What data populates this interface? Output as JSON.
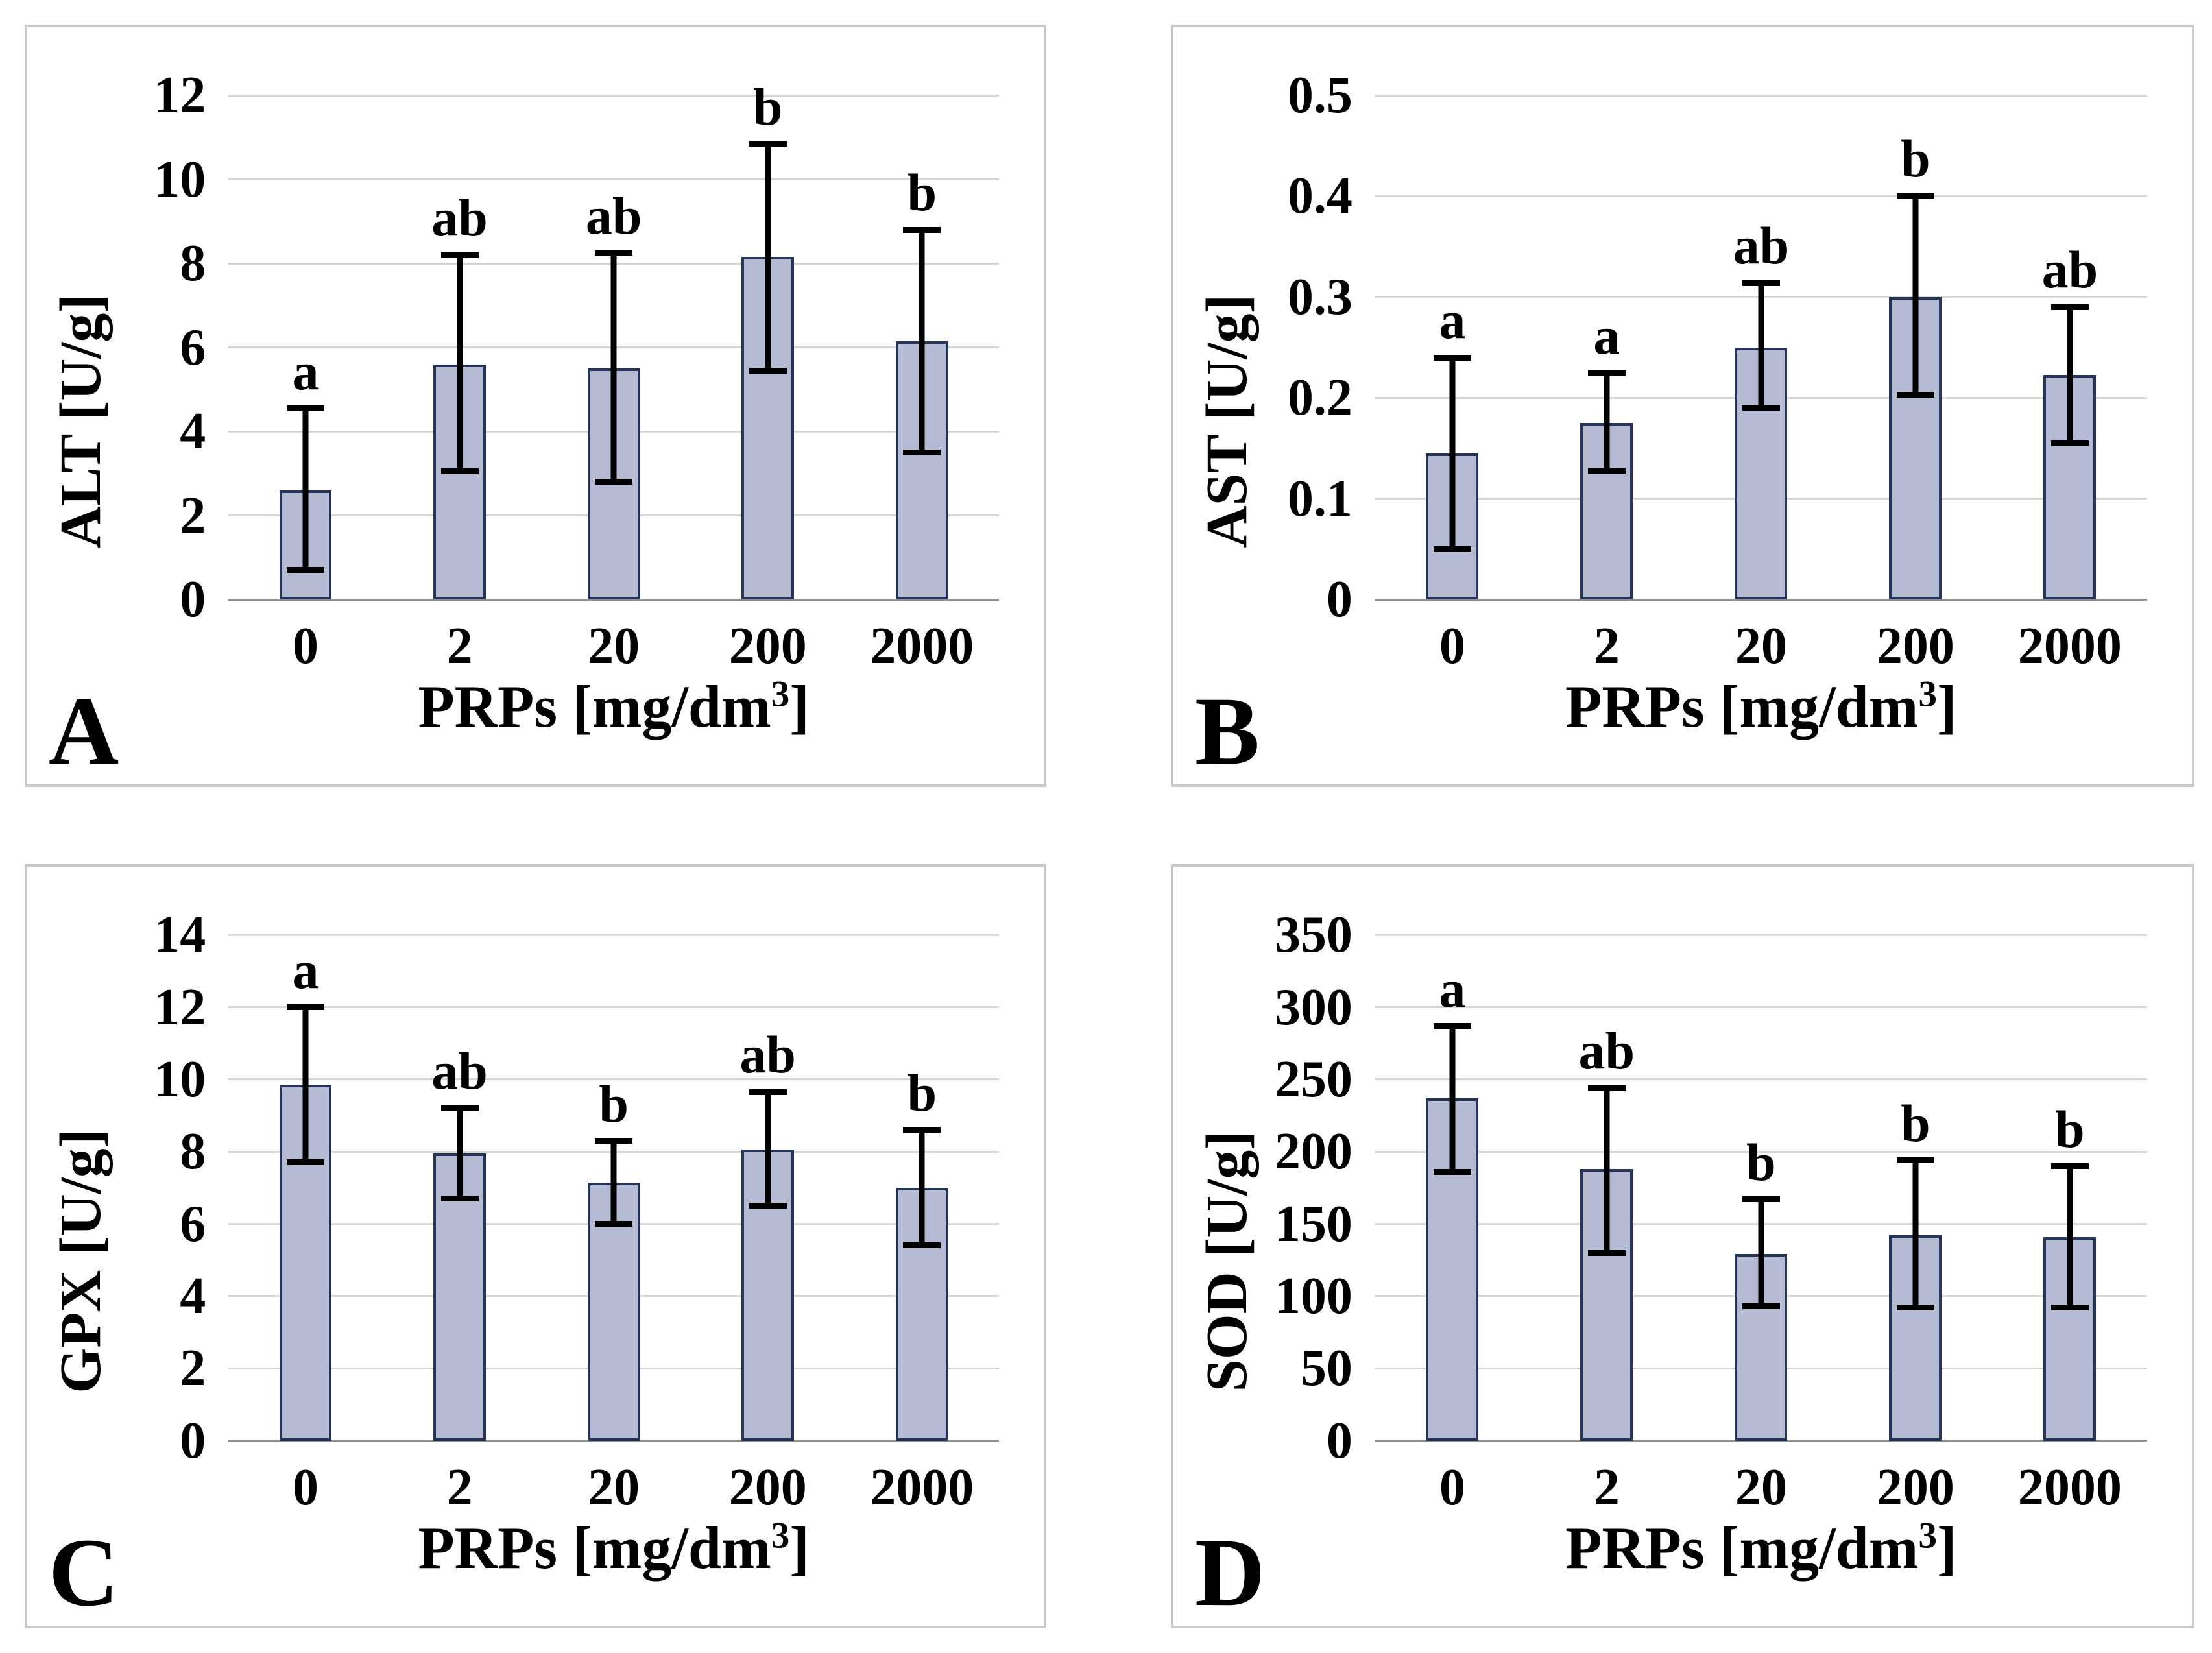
{
  "figure": {
    "background": "#ffffff",
    "panel_border_color": "#c9c9c9",
    "layout": "2x2 grid of bar chart panels"
  },
  "style": {
    "bar_fill": "#b5bbd3",
    "bar_border": "#263457",
    "error_bar_color": "#000000",
    "gridline_color": "#d6d6d6",
    "axis_line_color": "#8f8f8f",
    "text_color": "#000000"
  },
  "chart_data": [
    {
      "type": "bar",
      "panel": "A",
      "ylabel": "ALT [U/g]",
      "xlabel": "PRPs [mg/dm³]",
      "categories": [
        "0",
        "2",
        "20",
        "200",
        "2000"
      ],
      "values": [
        2.6,
        5.6,
        5.5,
        8.15,
        6.15
      ],
      "error_bar_bottom": [
        0.7,
        3.05,
        2.8,
        5.45,
        3.5
      ],
      "error_bar_top": [
        4.55,
        8.2,
        8.25,
        10.85,
        8.8
      ],
      "sig_letters": [
        "a",
        "ab",
        "ab",
        "b",
        "b"
      ],
      "ylim": [
        0,
        12
      ],
      "yticks": [
        0,
        2,
        4,
        6,
        8,
        10,
        12
      ],
      "grid": true,
      "legend": "none"
    },
    {
      "type": "bar",
      "panel": "B",
      "ylabel": "AST [U/g]",
      "xlabel": "PRPs [mg/dm³]",
      "categories": [
        "0",
        "2",
        "20",
        "200",
        "2000"
      ],
      "values": [
        0.145,
        0.175,
        0.25,
        0.3,
        0.223
      ],
      "error_bar_bottom": [
        0.05,
        0.128,
        0.19,
        0.203,
        0.155
      ],
      "error_bar_top": [
        0.24,
        0.225,
        0.314,
        0.4,
        0.29
      ],
      "sig_letters": [
        "a",
        "a",
        "ab",
        "b",
        "ab"
      ],
      "ylim": [
        0,
        0.5
      ],
      "yticks": [
        0,
        0.1,
        0.2,
        0.3,
        0.4,
        0.5
      ],
      "grid": true,
      "legend": "none"
    },
    {
      "type": "bar",
      "panel": "C",
      "ylabel": "GPX [U/g]",
      "xlabel": "PRPs [mg/dm³]",
      "categories": [
        "0",
        "2",
        "20",
        "200",
        "2000"
      ],
      "values": [
        9.85,
        7.95,
        7.15,
        8.05,
        7.0
      ],
      "error_bar_bottom": [
        7.7,
        6.7,
        6.0,
        6.5,
        5.4
      ],
      "error_bar_top": [
        12.0,
        9.2,
        8.3,
        9.65,
        8.6
      ],
      "sig_letters": [
        "a",
        "ab",
        "b",
        "ab",
        "b"
      ],
      "ylim": [
        0,
        14
      ],
      "yticks": [
        0,
        2,
        4,
        6,
        8,
        10,
        12,
        14
      ],
      "grid": true,
      "legend": "none"
    },
    {
      "type": "bar",
      "panel": "D",
      "ylabel": "SOD [U/g]",
      "xlabel": "PRPs [mg/dm³]",
      "categories": [
        "0",
        "2",
        "20",
        "200",
        "2000"
      ],
      "values": [
        237,
        188,
        129,
        142,
        141
      ],
      "error_bar_bottom": [
        186,
        130,
        93,
        92,
        92
      ],
      "error_bar_top": [
        287,
        244,
        167,
        194,
        190
      ],
      "sig_letters": [
        "a",
        "ab",
        "b",
        "b",
        "b"
      ],
      "ylim": [
        0,
        350
      ],
      "yticks": [
        0,
        50,
        100,
        150,
        200,
        250,
        300,
        350
      ],
      "grid": true,
      "legend": "none"
    }
  ]
}
